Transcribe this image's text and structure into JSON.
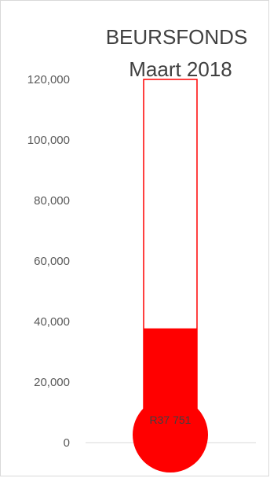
{
  "chart_data": {
    "type": "bar",
    "title": "BEURSFONDS",
    "subtitle": "Maart 2018",
    "ylim": [
      0,
      120000
    ],
    "y_ticks": [
      "0",
      "20,000",
      "40,000",
      "60,000",
      "80,000",
      "100,000",
      "120,000"
    ],
    "y_tick_values": [
      0,
      20000,
      40000,
      60000,
      80000,
      100000,
      120000
    ],
    "value": 37751,
    "target": 120000,
    "value_label": "R37 751",
    "colors": {
      "fill": "#ff0000",
      "outline": "#ff0000",
      "axis": "#d9d9d9"
    }
  }
}
